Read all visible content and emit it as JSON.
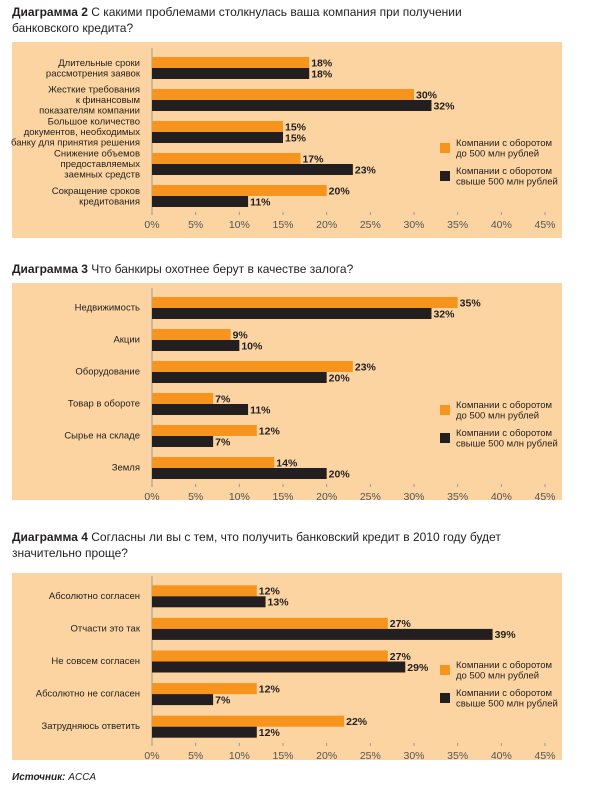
{
  "chart_data": [
    {
      "type": "bar",
      "orientation": "horizontal",
      "label": "Диаграмма 2",
      "title": "С какими проблемами столкнулась ваша компания при получении\nбанковского кредита?",
      "categories": [
        "Длительные сроки\nрассмотрения заявок",
        "Жесткие требования\nк финансовым\nпоказателям компании",
        "Большое количество\nдокументов, необходимых\nбанку для принятия решения",
        "Снижение объемов\nпредоставляемых\nзаемных средств",
        "Сокращение сроков\nкредитования"
      ],
      "series": [
        {
          "name": "Компании с оборотом\nдо 500 млн рублей",
          "color": "#f7941d",
          "values": [
            18,
            30,
            15,
            17,
            20
          ],
          "value_labels": [
            "18%",
            "30%",
            "15%",
            "17%",
            "20%"
          ]
        },
        {
          "name": "Компании с оборотом\nсвыше 500 млн рублей",
          "color": "#231f20",
          "values": [
            18,
            32,
            15,
            23,
            11
          ],
          "value_labels": [
            "18%",
            "32%",
            "15%",
            "23%",
            "11%"
          ]
        }
      ],
      "xlim": [
        0,
        45
      ],
      "xticks": [
        {
          "value": 0,
          "label": "0%"
        },
        {
          "value": 5,
          "label": "5%"
        },
        {
          "value": 10,
          "label": "10%"
        },
        {
          "value": 15,
          "label": "15%"
        },
        {
          "value": 20,
          "label": "20%"
        },
        {
          "value": 25,
          "label": "25%"
        },
        {
          "value": 30,
          "label": "30%"
        },
        {
          "value": 35,
          "label": "35%"
        },
        {
          "value": 40,
          "label": "40%"
        },
        {
          "value": 45,
          "label": "45%"
        }
      ]
    },
    {
      "type": "bar",
      "orientation": "horizontal",
      "label": "Диаграмма 3",
      "title": "Что банкиры охотнее берут в качестве залога?",
      "categories": [
        "Недвижимость",
        "Акции",
        "Оборудование",
        "Товар в обороте",
        "Сырье на складе",
        "Земля"
      ],
      "series": [
        {
          "name": "Компании с оборотом\nдо 500 млн рублей",
          "color": "#f7941d",
          "values": [
            35,
            9,
            23,
            7,
            12,
            14
          ],
          "value_labels": [
            "35%",
            "9%",
            "23%",
            "7%",
            "12%",
            "14%"
          ]
        },
        {
          "name": "Компании с оборотом\nсвыше 500 млн рублей",
          "color": "#231f20",
          "values": [
            32,
            10,
            20,
            11,
            7,
            20
          ],
          "value_labels": [
            "32%",
            "10%",
            "20%",
            "11%",
            "7%",
            "20%"
          ]
        }
      ],
      "xlim": [
        0,
        45
      ],
      "xticks": [
        {
          "value": 0,
          "label": "0%"
        },
        {
          "value": 5,
          "label": "5%"
        },
        {
          "value": 10,
          "label": "10%"
        },
        {
          "value": 15,
          "label": "15%"
        },
        {
          "value": 20,
          "label": "20%"
        },
        {
          "value": 25,
          "label": "25%"
        },
        {
          "value": 30,
          "label": "30%"
        },
        {
          "value": 35,
          "label": "35%"
        },
        {
          "value": 40,
          "label": "40%"
        },
        {
          "value": 45,
          "label": "45%"
        }
      ]
    },
    {
      "type": "bar",
      "orientation": "horizontal",
      "label": "Диаграмма 4",
      "title": "Согласны ли вы с тем, что получить банковский кредит в 2010 году будет\nзначительно проще?",
      "categories": [
        "Абсолютно согласен",
        "Отчасти это так",
        "Не совсем согласен",
        "Абсолютно не согласен",
        "Затрудняюсь ответить"
      ],
      "series": [
        {
          "name": "Компании с оборотом\nдо 500 млн рублей",
          "color": "#f7941d",
          "values": [
            12,
            27,
            27,
            12,
            22
          ],
          "value_labels": [
            "12%",
            "27%",
            "27%",
            "12%",
            "22%"
          ]
        },
        {
          "name": "Компании с оборотом\nсвыше 500 млн рублей",
          "color": "#231f20",
          "values": [
            13,
            39,
            29,
            7,
            12
          ],
          "value_labels": [
            "13%",
            "39%",
            "29%",
            "7%",
            "12%"
          ]
        }
      ],
      "xlim": [
        0,
        45
      ],
      "xticks": [
        {
          "value": 0,
          "label": "0%"
        },
        {
          "value": 5,
          "label": "5%"
        },
        {
          "value": 10,
          "label": "10%"
        },
        {
          "value": 15,
          "label": "15%"
        },
        {
          "value": 20,
          "label": "20%"
        },
        {
          "value": 25,
          "label": "25%"
        },
        {
          "value": 30,
          "label": "30%"
        },
        {
          "value": 35,
          "label": "35%"
        },
        {
          "value": 40,
          "label": "40%"
        },
        {
          "value": 45,
          "label": "45%"
        }
      ]
    }
  ],
  "source": {
    "label": "Источник:",
    "text": "ACCA"
  }
}
